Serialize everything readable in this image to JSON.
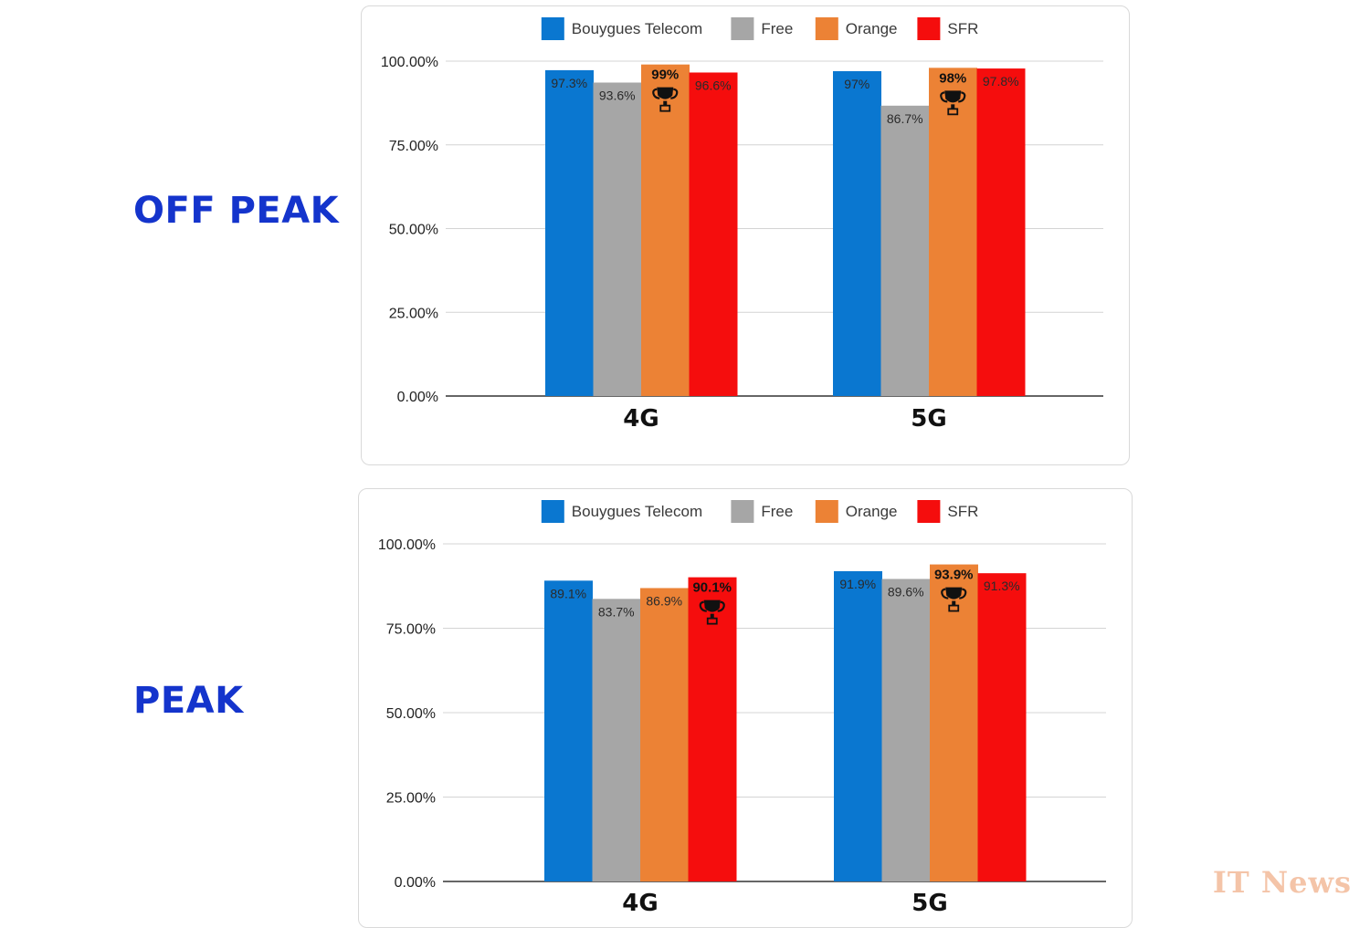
{
  "sections": [
    {
      "label": "OFF PEAK"
    },
    {
      "label": "PEAK"
    }
  ],
  "watermark": "IT News",
  "chart_data": [
    {
      "type": "bar",
      "categories": [
        "4G",
        "5G"
      ],
      "ylim": [
        0,
        100
      ],
      "yticks": [
        "0.00%",
        "25.00%",
        "50.00%",
        "75.00%",
        "100.00%"
      ],
      "grid": true,
      "legend_position": "top",
      "series": [
        {
          "name": "Bouygues Telecom",
          "color": "#0a77d0",
          "values": [
            97.3,
            97
          ],
          "labels": [
            "97.3%",
            "97%"
          ]
        },
        {
          "name": "Free",
          "color": "#a6a6a6",
          "values": [
            93.6,
            86.7
          ],
          "labels": [
            "93.6%",
            "86.7%"
          ]
        },
        {
          "name": "Orange",
          "color": "#ec8235",
          "values": [
            99,
            98
          ],
          "labels": [
            "99%",
            "98%"
          ]
        },
        {
          "name": "SFR",
          "color": "#f50d0d",
          "values": [
            96.6,
            97.8
          ],
          "labels": [
            "96.6%",
            "97.8%"
          ]
        }
      ],
      "winners": [
        2,
        2
      ],
      "trophy_icon": "trophy-icon"
    },
    {
      "type": "bar",
      "categories": [
        "4G",
        "5G"
      ],
      "ylim": [
        0,
        100
      ],
      "yticks": [
        "0.00%",
        "25.00%",
        "50.00%",
        "75.00%",
        "100.00%"
      ],
      "grid": true,
      "legend_position": "top",
      "series": [
        {
          "name": "Bouygues Telecom",
          "color": "#0a77d0",
          "values": [
            89.1,
            91.9
          ],
          "labels": [
            "89.1%",
            "91.9%"
          ]
        },
        {
          "name": "Free",
          "color": "#a6a6a6",
          "values": [
            83.7,
            89.6
          ],
          "labels": [
            "83.7%",
            "89.6%"
          ]
        },
        {
          "name": "Orange",
          "color": "#ec8235",
          "values": [
            86.9,
            93.9
          ],
          "labels": [
            "86.9%",
            "93.9%"
          ]
        },
        {
          "name": "SFR",
          "color": "#f50d0d",
          "values": [
            90.1,
            91.3
          ],
          "labels": [
            "90.1%",
            "91.3%"
          ]
        }
      ],
      "winners": [
        3,
        2
      ],
      "trophy_icon": "trophy-icon"
    }
  ]
}
